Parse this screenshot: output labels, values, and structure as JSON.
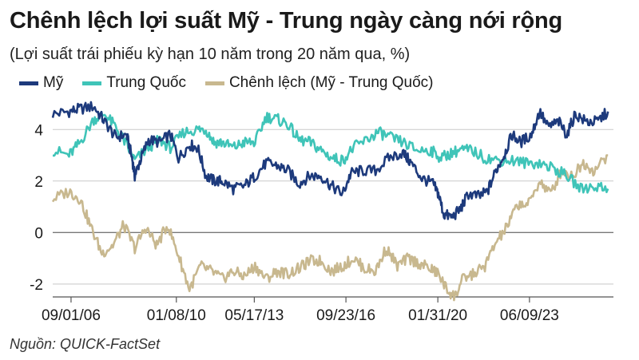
{
  "header": {
    "title": "Chênh lệch lợi suất Mỹ - Trung ngày càng nới rộng",
    "subtitle": "(Lợi suất trái phiếu kỳ hạn 10 năm trong 20 năm qua, %)"
  },
  "source": "Nguồn: QUICK-FactSet",
  "colors": {
    "us": "#1d3a7c",
    "china": "#3fc4b8",
    "spread": "#c8b88f",
    "grid": "#c8c8c8",
    "zero_line": "#777777"
  },
  "chart_data": {
    "type": "line",
    "title": "Chênh lệch lợi suất Mỹ - Trung ngày càng nới rộng",
    "subtitle": "(Lợi suất trái phiếu kỳ hạn 10 năm trong 20 năm qua, %)",
    "xlabel": "",
    "ylabel": "",
    "ylim": [
      -2.5,
      5
    ],
    "yticks": [
      -2,
      0,
      2,
      4
    ],
    "ytick_labels": [
      "-2",
      "0",
      "2",
      "4"
    ],
    "xlim": [
      2006.0,
      2026.5
    ],
    "xticks": [
      2006.67,
      2010.52,
      2013.37,
      2016.72,
      2020.08,
      2023.43
    ],
    "xtick_labels": [
      "09/01/06",
      "01/08/10",
      "05/17/13",
      "09/23/16",
      "01/31/20",
      "06/09/23"
    ],
    "grid": "horizontal",
    "legend": "top-left",
    "series": [
      {
        "name": "Mỹ",
        "x": [
          2006.0,
          2006.6,
          2007.0,
          2007.5,
          2007.9,
          2008.3,
          2008.7,
          2008.9,
          2009.0,
          2009.2,
          2009.5,
          2009.9,
          2010.3,
          2010.6,
          2011.0,
          2011.3,
          2011.6,
          2011.9,
          2012.2,
          2012.6,
          2013.0,
          2013.4,
          2013.8,
          2014.2,
          2014.6,
          2015.0,
          2015.4,
          2015.8,
          2016.2,
          2016.6,
          2016.9,
          2017.3,
          2017.8,
          2018.3,
          2018.8,
          2019.1,
          2019.5,
          2019.9,
          2020.1,
          2020.3,
          2020.6,
          2020.9,
          2021.2,
          2021.6,
          2021.9,
          2022.2,
          2022.5,
          2022.8,
          2023.1,
          2023.5,
          2023.8,
          2024.1,
          2024.5,
          2024.8,
          2025.1,
          2025.5,
          2025.9,
          2026.3
        ],
        "values": [
          4.6,
          4.7,
          4.8,
          4.9,
          4.3,
          3.7,
          3.8,
          2.9,
          2.2,
          2.8,
          3.6,
          3.5,
          3.8,
          2.9,
          3.4,
          3.3,
          2.2,
          2.0,
          2.0,
          1.7,
          1.8,
          2.2,
          2.7,
          2.6,
          2.4,
          1.9,
          2.2,
          2.2,
          1.8,
          1.5,
          2.3,
          2.4,
          2.4,
          2.9,
          3.1,
          2.7,
          2.1,
          1.9,
          1.5,
          0.7,
          0.6,
          0.9,
          1.5,
          1.4,
          1.6,
          2.4,
          3.0,
          3.8,
          3.5,
          3.8,
          4.7,
          4.1,
          4.3,
          3.8,
          4.6,
          4.3,
          4.3,
          4.7
        ]
      },
      {
        "name": "Trung Quốc",
        "x": [
          2006.0,
          2006.6,
          2007.0,
          2007.5,
          2007.9,
          2008.3,
          2008.7,
          2009.0,
          2009.5,
          2009.9,
          2010.3,
          2010.8,
          2011.3,
          2011.6,
          2011.9,
          2012.2,
          2012.6,
          2013.0,
          2013.4,
          2013.8,
          2014.2,
          2014.6,
          2015.0,
          2015.4,
          2015.8,
          2016.2,
          2016.6,
          2017.0,
          2017.5,
          2017.9,
          2018.3,
          2018.8,
          2019.3,
          2019.8,
          2020.2,
          2020.6,
          2020.9,
          2021.3,
          2021.8,
          2022.3,
          2022.8,
          2023.3,
          2023.8,
          2024.3,
          2024.8,
          2025.3,
          2025.8,
          2026.3
        ],
        "values": [
          3.2,
          3.0,
          3.5,
          4.4,
          4.6,
          4.1,
          3.4,
          2.8,
          3.3,
          3.6,
          3.3,
          3.9,
          4.0,
          4.0,
          3.5,
          3.5,
          3.3,
          3.5,
          3.5,
          4.5,
          4.4,
          4.2,
          3.6,
          3.5,
          3.2,
          2.9,
          2.8,
          3.3,
          3.6,
          3.9,
          3.7,
          3.5,
          3.2,
          3.2,
          2.9,
          3.1,
          3.2,
          3.2,
          2.9,
          2.8,
          2.8,
          2.7,
          2.7,
          2.5,
          2.2,
          1.7,
          1.8,
          1.7
        ]
      },
      {
        "name": "Chênh lệch (Mỹ - Trung Quốc)",
        "x": [
          2006.0,
          2006.6,
          2007.0,
          2007.4,
          2007.8,
          2008.2,
          2008.6,
          2009.0,
          2009.4,
          2009.8,
          2010.2,
          2010.6,
          2011.0,
          2011.4,
          2011.8,
          2012.2,
          2012.6,
          2013.0,
          2013.4,
          2013.8,
          2014.2,
          2014.6,
          2015.0,
          2015.4,
          2015.8,
          2016.2,
          2016.6,
          2017.0,
          2017.4,
          2017.8,
          2018.2,
          2018.6,
          2019.0,
          2019.4,
          2019.8,
          2020.1,
          2020.4,
          2020.7,
          2021.0,
          2021.4,
          2021.8,
          2022.2,
          2022.6,
          2023.0,
          2023.4,
          2023.8,
          2024.2,
          2024.6,
          2025.0,
          2025.4,
          2025.8,
          2026.3
        ],
        "values": [
          1.3,
          1.6,
          1.3,
          0.2,
          -0.8,
          -0.5,
          0.3,
          -0.6,
          0.2,
          -0.5,
          0.3,
          -0.9,
          -2.2,
          -1.3,
          -1.5,
          -1.8,
          -1.5,
          -1.7,
          -1.3,
          -1.8,
          -1.5,
          -1.6,
          -1.4,
          -1.1,
          -1.1,
          -1.5,
          -1.3,
          -1.0,
          -1.4,
          -1.5,
          -0.6,
          -1.3,
          -1.0,
          -1.2,
          -1.4,
          -1.6,
          -2.2,
          -2.5,
          -1.8,
          -1.6,
          -1.3,
          -0.4,
          0.2,
          1.1,
          1.1,
          2.0,
          1.5,
          2.4,
          2.2,
          2.7,
          2.4,
          3.0
        ]
      }
    ]
  }
}
